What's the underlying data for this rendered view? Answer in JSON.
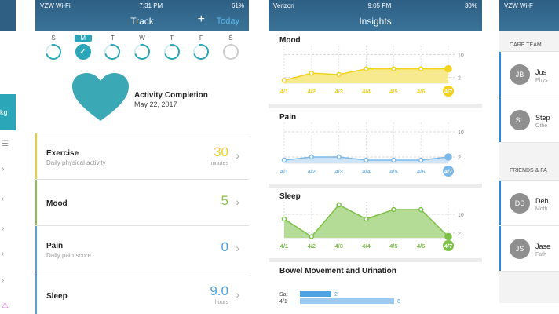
{
  "track": {
    "status": {
      "carrier": "VZW Wi-Fi",
      "time": "7:31 PM",
      "battery": "61%"
    },
    "title": "Track",
    "add_label": "+",
    "today_label": "Today",
    "days": [
      {
        "label": "S",
        "state": "partial"
      },
      {
        "label": "M",
        "state": "checked"
      },
      {
        "label": "T",
        "state": "partial"
      },
      {
        "label": "W",
        "state": "partial"
      },
      {
        "label": "T",
        "state": "partial"
      },
      {
        "label": "F",
        "state": "partial"
      },
      {
        "label": "S",
        "state": "empty"
      }
    ],
    "activity": {
      "title": "Activity Completion",
      "date": "May 22, 2017",
      "heart_color": "#3ba9b5"
    },
    "rows": [
      {
        "name": "Exercise",
        "sub": "Daily physical activity",
        "value": "30",
        "unit": "minutes",
        "color": "#f0cf2a"
      },
      {
        "name": "Mood",
        "sub": "",
        "value": "5",
        "unit": "",
        "color": "#8bc34a"
      },
      {
        "name": "Pain",
        "sub": "Daily pain score",
        "value": "0",
        "unit": "",
        "color": "#4fa3e0"
      },
      {
        "name": "Sleep",
        "sub": "",
        "value": "9.0",
        "unit": "hours",
        "color": "#4fa3e0"
      }
    ]
  },
  "insights": {
    "status": {
      "carrier": "Verizon",
      "time": "9:05 PM",
      "battery": "30%"
    },
    "title": "Insights",
    "bowel_title": "Bowel Movement and Urination"
  },
  "chart_data": [
    {
      "type": "area",
      "title": "Mood",
      "categories": [
        "4/1",
        "4/2",
        "4/3",
        "4/4",
        "4/5",
        "4/6",
        "4/7"
      ],
      "values": [
        1,
        3.5,
        3,
        5,
        5,
        5,
        5
      ],
      "ylim": [
        0,
        12
      ],
      "yticks": [
        "10",
        "2"
      ],
      "color": "#f2d21b",
      "fill": "#f7ea8e"
    },
    {
      "type": "area",
      "title": "Pain",
      "categories": [
        "4/1",
        "4/2",
        "4/3",
        "4/4",
        "4/5",
        "4/6",
        "4/7"
      ],
      "values": [
        1,
        2,
        2,
        1,
        1,
        1,
        2
      ],
      "ylim": [
        0,
        12
      ],
      "yticks": [
        "10",
        "2"
      ],
      "color": "#7db9e8",
      "fill": "#cfe4f7"
    },
    {
      "type": "area",
      "title": "Sleep",
      "categories": [
        "4/1",
        "4/2",
        "4/3",
        "4/4",
        "4/5",
        "4/6",
        "4/7"
      ],
      "values": [
        8,
        0.5,
        14,
        8,
        12,
        12,
        0.5
      ],
      "ylim": [
        0,
        14
      ],
      "yticks": [
        "10",
        "2"
      ],
      "color": "#7cc046",
      "fill": "#b5dc96"
    },
    {
      "type": "bar",
      "title": "Bowel Movement and Urination",
      "categories": [
        "Sat",
        "4/1"
      ],
      "values": [
        2,
        6
      ],
      "xlim": [
        0,
        6
      ],
      "color": "#4fa3e0",
      "fill": "#9ccaf0"
    }
  ],
  "care": {
    "status": {
      "carrier": "VZW Wi-F"
    },
    "section1": "CARE TEAM",
    "section2": "FRIENDS & FA",
    "people1": [
      {
        "initials": "JB",
        "name": "Jus",
        "role": "Phys"
      },
      {
        "initials": "SL",
        "name": "Step",
        "role": "Othe"
      }
    ],
    "people2": [
      {
        "initials": "DS",
        "name": "Deb",
        "role": "Moth"
      },
      {
        "initials": "JS",
        "name": "Jase",
        "role": "Fath"
      }
    ]
  },
  "left": {
    "teal_text": "kg"
  }
}
